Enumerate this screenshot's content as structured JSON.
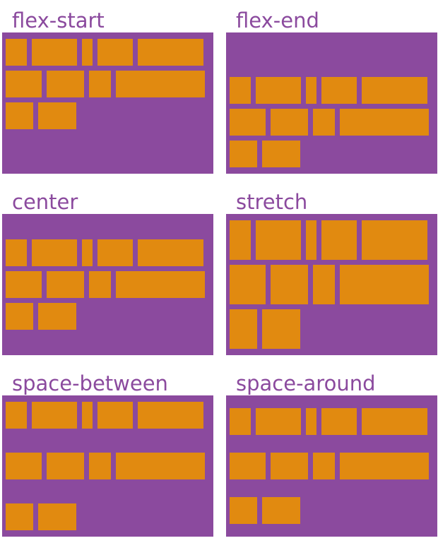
{
  "diagram": {
    "colors": {
      "container_purple": "#8B4A9E",
      "item_orange": "#E18A10",
      "label_purple": "#8B4A9E",
      "background": "#FFFFFF"
    },
    "panels": [
      {
        "label": "flex-start"
      },
      {
        "label": "flex-end"
      },
      {
        "label": "center"
      },
      {
        "label": "stretch"
      },
      {
        "label": "space-between"
      },
      {
        "label": "space-around"
      }
    ],
    "item_rows": [
      [
        30,
        64,
        15,
        50,
        93
      ],
      [
        51,
        53,
        31,
        126
      ],
      [
        39,
        54
      ]
    ],
    "item_height": 38
  }
}
